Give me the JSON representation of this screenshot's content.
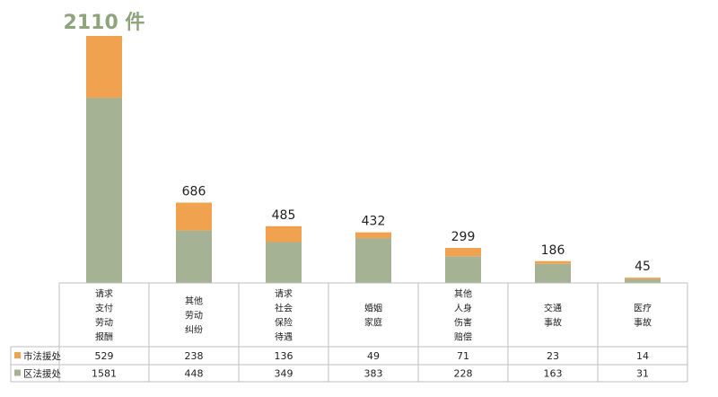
{
  "chart_data": {
    "type": "bar",
    "stacked": true,
    "categories": [
      [
        "请求",
        "支付",
        "劳动",
        "报酬"
      ],
      [
        "其他",
        "劳动",
        "纠纷"
      ],
      [
        "请求",
        "社会",
        "保险",
        "待遇"
      ],
      [
        "婚姻",
        "家庭"
      ],
      [
        "其他",
        "人身",
        "伤害",
        "赔偿"
      ],
      [
        "交通",
        "事故"
      ],
      [
        "医疗",
        "事故"
      ]
    ],
    "series": [
      {
        "name": "区法援处",
        "color": "#a5b394",
        "values": [
          1581,
          448,
          349,
          383,
          228,
          163,
          31
        ]
      },
      {
        "name": "市法援处",
        "color": "#f0a24e",
        "values": [
          529,
          238,
          136,
          49,
          71,
          23,
          14
        ]
      }
    ],
    "totals": [
      "2110 件",
      "686",
      "485",
      "432",
      "299",
      "186",
      "45"
    ],
    "ylim": [
      0,
      2110
    ],
    "legend": "data-table-left",
    "data_table": true
  }
}
